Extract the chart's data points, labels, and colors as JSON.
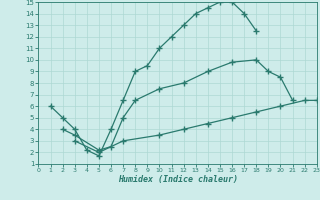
{
  "line1": {
    "x": [
      1,
      2,
      3,
      4,
      5,
      6,
      7,
      8,
      9,
      10,
      11,
      12,
      13,
      14,
      15,
      16,
      17,
      18
    ],
    "y": [
      6,
      5,
      4,
      2.2,
      1.7,
      4,
      6.5,
      9,
      9.5,
      11,
      12,
      13,
      14,
      14.5,
      15,
      15,
      14,
      12.5
    ]
  },
  "line2": {
    "x": [
      2,
      3,
      5,
      6,
      7,
      8,
      10,
      12,
      14,
      16,
      18,
      19,
      20,
      21
    ],
    "y": [
      4,
      3.5,
      2.2,
      2.5,
      5,
      6.5,
      7.5,
      8,
      9,
      9.8,
      10,
      9,
      8.5,
      6.5
    ]
  },
  "line3": {
    "x": [
      3,
      5,
      7,
      10,
      12,
      14,
      16,
      18,
      20,
      22,
      23
    ],
    "y": [
      3,
      2,
      3,
      3.5,
      4,
      4.5,
      5,
      5.5,
      6,
      6.5,
      6.5
    ]
  },
  "color": "#2a7a6e",
  "bg_color": "#ceecea",
  "grid_color": "#add8d4",
  "xlabel": "Humidex (Indice chaleur)",
  "xlim": [
    0,
    23
  ],
  "ylim": [
    1,
    15
  ],
  "xticks": [
    0,
    1,
    2,
    3,
    4,
    5,
    6,
    7,
    8,
    9,
    10,
    11,
    12,
    13,
    14,
    15,
    16,
    17,
    18,
    19,
    20,
    21,
    22,
    23
  ],
  "yticks": [
    1,
    2,
    3,
    4,
    5,
    6,
    7,
    8,
    9,
    10,
    11,
    12,
    13,
    14,
    15
  ],
  "marker": "+",
  "markersize": 4,
  "linewidth": 0.9,
  "tick_fontsize_x": 4.5,
  "tick_fontsize_y": 5.0,
  "xlabel_fontsize": 6.0
}
